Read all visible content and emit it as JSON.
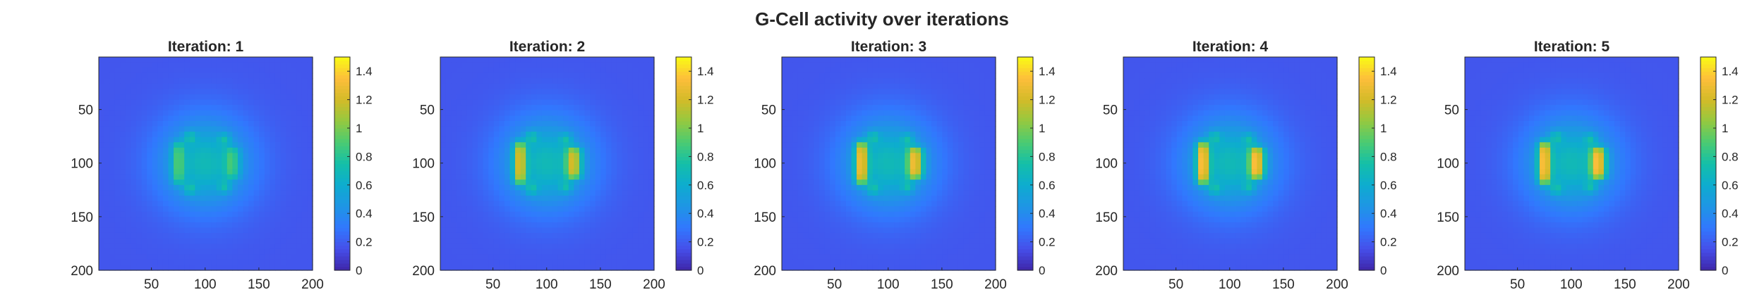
{
  "figure": {
    "title": "G-Cell activity over iterations"
  },
  "chart_data": {
    "type": "heatmap",
    "colormap": "parula",
    "title": "G-Cell activity over iterations",
    "panels": [
      {
        "title": "Iteration: 1",
        "peak_left": 0.95,
        "peak_right": 0.9
      },
      {
        "title": "Iteration: 2",
        "peak_left": 1.3,
        "peak_right": 1.25
      },
      {
        "title": "Iteration: 3",
        "peak_left": 1.4,
        "peak_right": 1.35
      },
      {
        "title": "Iteration: 4",
        "peak_left": 1.45,
        "peak_right": 1.4
      },
      {
        "title": "Iteration: 5",
        "peak_left": 1.45,
        "peak_right": 1.4
      }
    ],
    "x_ticks": [
      50,
      100,
      150,
      200
    ],
    "y_ticks": [
      50,
      100,
      150,
      200
    ],
    "xlim": [
      1,
      200
    ],
    "ylim": [
      1,
      200
    ],
    "y_direction": "reverse",
    "colorbar": {
      "ticks": [
        0,
        0.2,
        0.4,
        0.6,
        0.8,
        1,
        1.2,
        1.4
      ],
      "tick_labels": [
        "0",
        "0.2",
        "0.4",
        "0.6",
        "0.8",
        "1",
        "1.2",
        "1.4"
      ],
      "clim": [
        0,
        1.5
      ]
    },
    "grid": false
  }
}
